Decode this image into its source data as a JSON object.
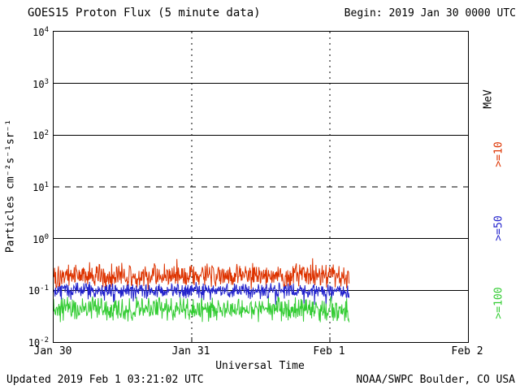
{
  "chart_data": {
    "type": "line",
    "title": "GOES15 Proton Flux (5 minute data)",
    "begin": "Begin: 2019 Jan 30 0000 UTC",
    "xlabel": "Universal Time",
    "ylabel": "Particles cm⁻²s⁻¹sr⁻¹",
    "right_axis_label": "MeV",
    "x_tick_labels": [
      "Jan 30",
      "Jan 31",
      "Feb 1",
      "Feb 2"
    ],
    "x_tick_days": [
      0,
      1,
      2,
      3
    ],
    "x_range_days": [
      0,
      3
    ],
    "y_exponent_range": [
      -2,
      4
    ],
    "y_tick_exponents": [
      4,
      3,
      2,
      1,
      0,
      -1,
      -2
    ],
    "gridlines": {
      "solid_exponents": [
        3,
        2,
        0,
        -1
      ],
      "dashed_exponents": [
        1
      ],
      "vertical_days": [
        1,
        2
      ]
    },
    "series": [
      {
        "name": ">=10",
        "color": "#dd3300",
        "log10_base": -0.72,
        "log10_noise": 0.28,
        "spike_prob": 0.03,
        "spike_log10": 0.18,
        "start_day": 0,
        "end_day": 2.14,
        "step_minutes": 5,
        "seed": 101,
        "approx_mean": 0.17,
        "approx_min": 0.09,
        "approx_max": 0.45
      },
      {
        "name": ">=50",
        "color": "#2222cc",
        "log10_base": -1.0,
        "log10_noise": 0.17,
        "spike_prob": 0.04,
        "spike_log10": -0.18,
        "start_day": 0,
        "end_day": 2.14,
        "step_minutes": 5,
        "seed": 202,
        "approx_mean": 0.1,
        "approx_min": 0.055,
        "approx_max": 0.16
      },
      {
        "name": ">=100",
        "color": "#33cc33",
        "log10_base": -1.37,
        "log10_noise": 0.27,
        "spike_prob": 0.0,
        "spike_log10": 0,
        "start_day": 0,
        "end_day": 2.14,
        "step_minutes": 5,
        "seed": 303,
        "approx_mean": 0.045,
        "approx_min": 0.02,
        "approx_max": 0.09
      }
    ],
    "footer": {
      "updated": "Updated 2019 Feb 1 03:21:02 UTC",
      "credit": "NOAA/SWPC Boulder, CO USA"
    }
  }
}
